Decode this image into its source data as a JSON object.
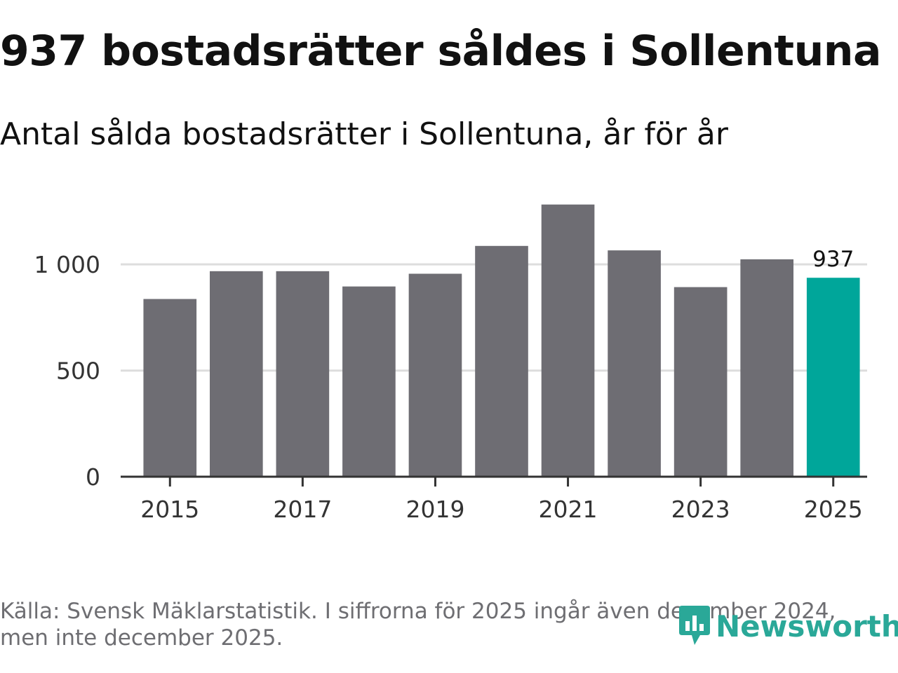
{
  "title": "937 bostadsrätter såldes i Sollentuna",
  "subtitle": "Antal sålda bostadsrätter i Sollentuna, år för år",
  "source": {
    "line1": "Källa: Svensk Mäklarstatistik. I siffrorna för 2025 ingår även december 2024,",
    "line2": "men inte december 2025."
  },
  "logo": {
    "text": "Newsworthy",
    "icon": "newsworthy-logo-icon"
  },
  "colors": {
    "bar": "#6e6d73",
    "highlight": "#00a69a",
    "grid": "#dddddd",
    "axis": "#333333",
    "logo": "#2aa898"
  },
  "chart_data": {
    "type": "bar",
    "title": "937 bostadsrätter såldes i Sollentuna",
    "subtitle": "Antal sålda bostadsrätter i Sollentuna, år för år",
    "xlabel": "",
    "ylabel": "",
    "categories": [
      "2015",
      "2016",
      "2017",
      "2018",
      "2019",
      "2020",
      "2021",
      "2022",
      "2023",
      "2024",
      "2025"
    ],
    "values": [
      837,
      968,
      968,
      896,
      956,
      1087,
      1282,
      1066,
      893,
      1024,
      937
    ],
    "highlight_index": 10,
    "data_labels": [
      {
        "category": "2025",
        "text": "937"
      }
    ],
    "ylim": [
      0,
      1400
    ],
    "yticks": [
      0,
      500,
      1000
    ],
    "ytick_labels": [
      "0",
      "500",
      "1 000"
    ],
    "xtick_labels": [
      "2015",
      "2017",
      "2019",
      "2021",
      "2023",
      "2025"
    ],
    "grid": true,
    "legend": "none"
  }
}
